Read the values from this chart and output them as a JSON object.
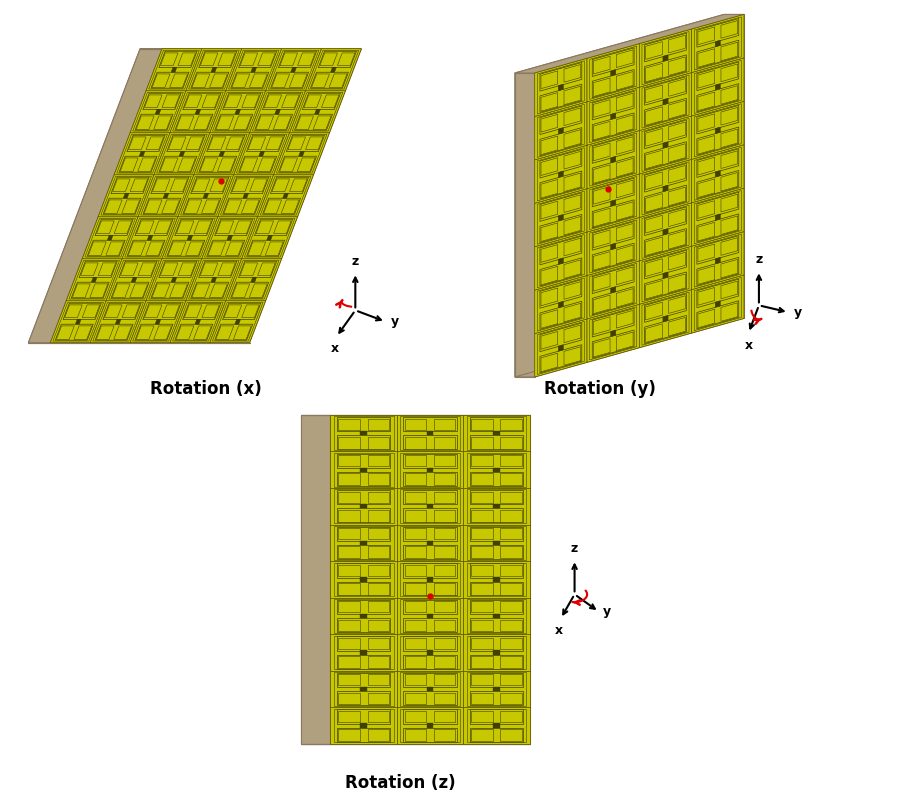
{
  "background_color": "#ffffff",
  "panel_color": "#c8b898",
  "panel_side_color": "#b0a080",
  "panel_edge_color": "#8a7860",
  "grid_bg": "#c8c800",
  "cell_border": "#5a5000",
  "cell_inner": "#404000",
  "red_dot_color": "#dd0000",
  "axis_black": "#000000",
  "axis_red": "#dd0000",
  "label_color": "#000000",
  "label_fontsize": 12,
  "labels": [
    "Rotation (x)",
    "Rotation (y)",
    "Rotation (z)"
  ]
}
